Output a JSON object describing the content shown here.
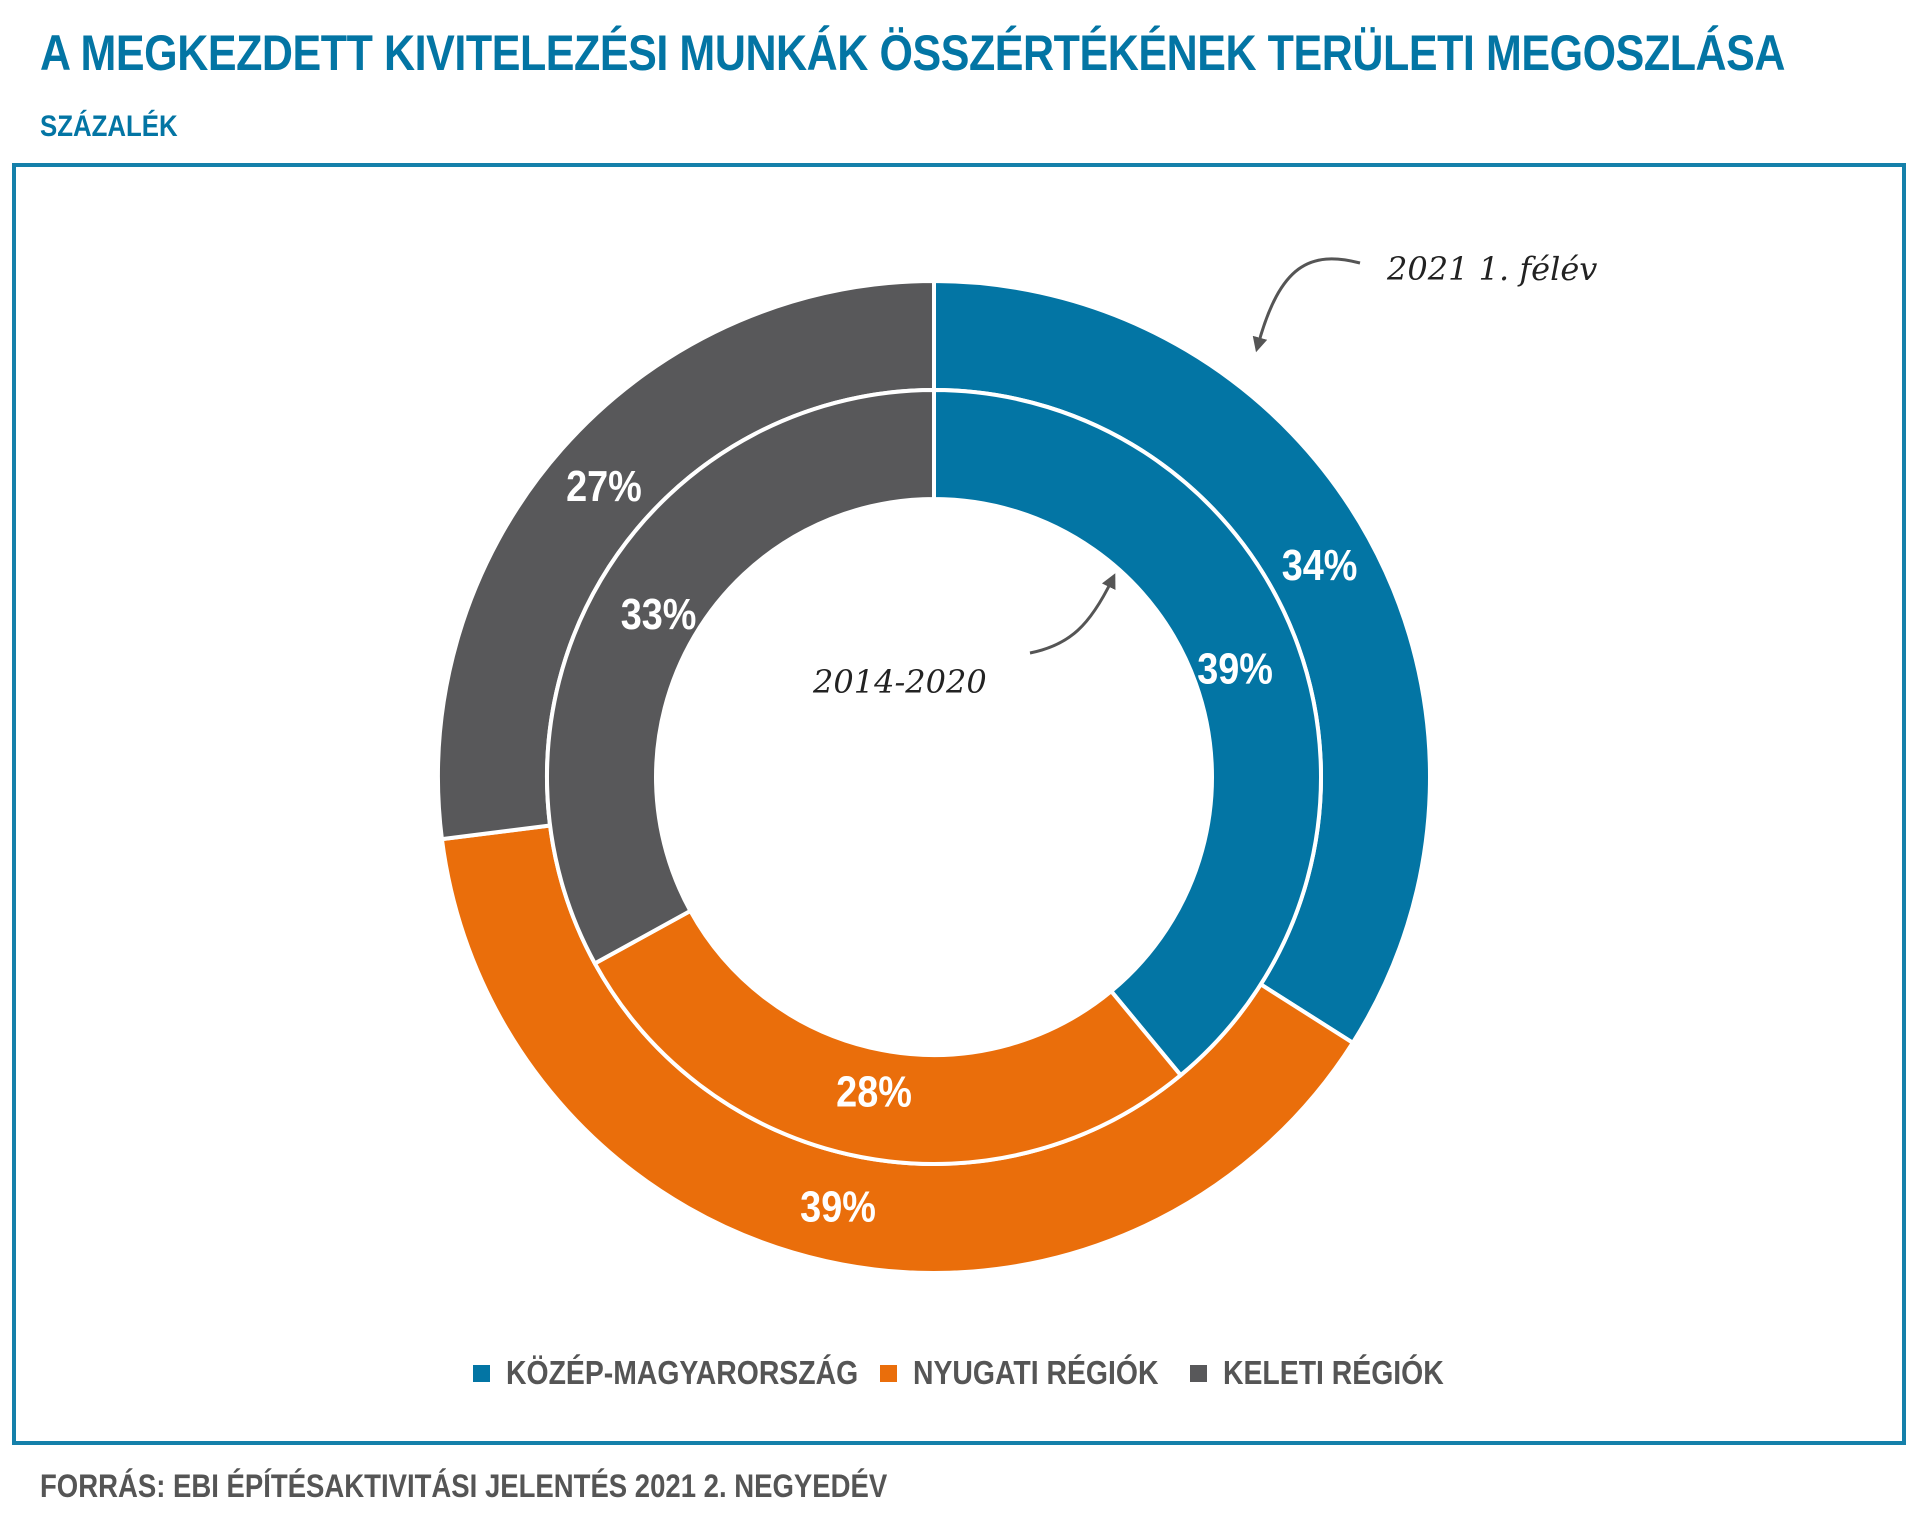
{
  "title": "A MEGKEZDETT KIVITELEZÉSI MUNKÁK ÖSSZÉRTÉKÉNEK TERÜLETI MEGOSZLÁSA",
  "subtitle": "SZÁZALÉK",
  "source": "FORRÁS: EBI ÉPÍTÉSAKTIVITÁSI JELENTÉS 2021 2. NEGYEDÉV",
  "chart_data": {
    "type": "pie",
    "subtype": "nested-donut",
    "categories": [
      "KÖZÉP-MAGYARORSZÁG",
      "NYUGATI RÉGIÓK",
      "KELETI RÉGIÓK"
    ],
    "colors": [
      "#0375a4",
      "#ea6e0b",
      "#58585a"
    ],
    "series": [
      {
        "name": "2021 1. félév",
        "ring": "outer",
        "values": [
          34,
          39,
          27
        ],
        "labels": [
          "34%",
          "39%",
          "27%"
        ]
      },
      {
        "name": "2014-2020",
        "ring": "inner",
        "values": [
          39,
          28,
          33
        ],
        "labels": [
          "39%",
          "28%",
          "33%"
        ]
      }
    ],
    "legend_position": "bottom",
    "annotations": [
      "2021 1. félév",
      "2014-2020"
    ]
  }
}
